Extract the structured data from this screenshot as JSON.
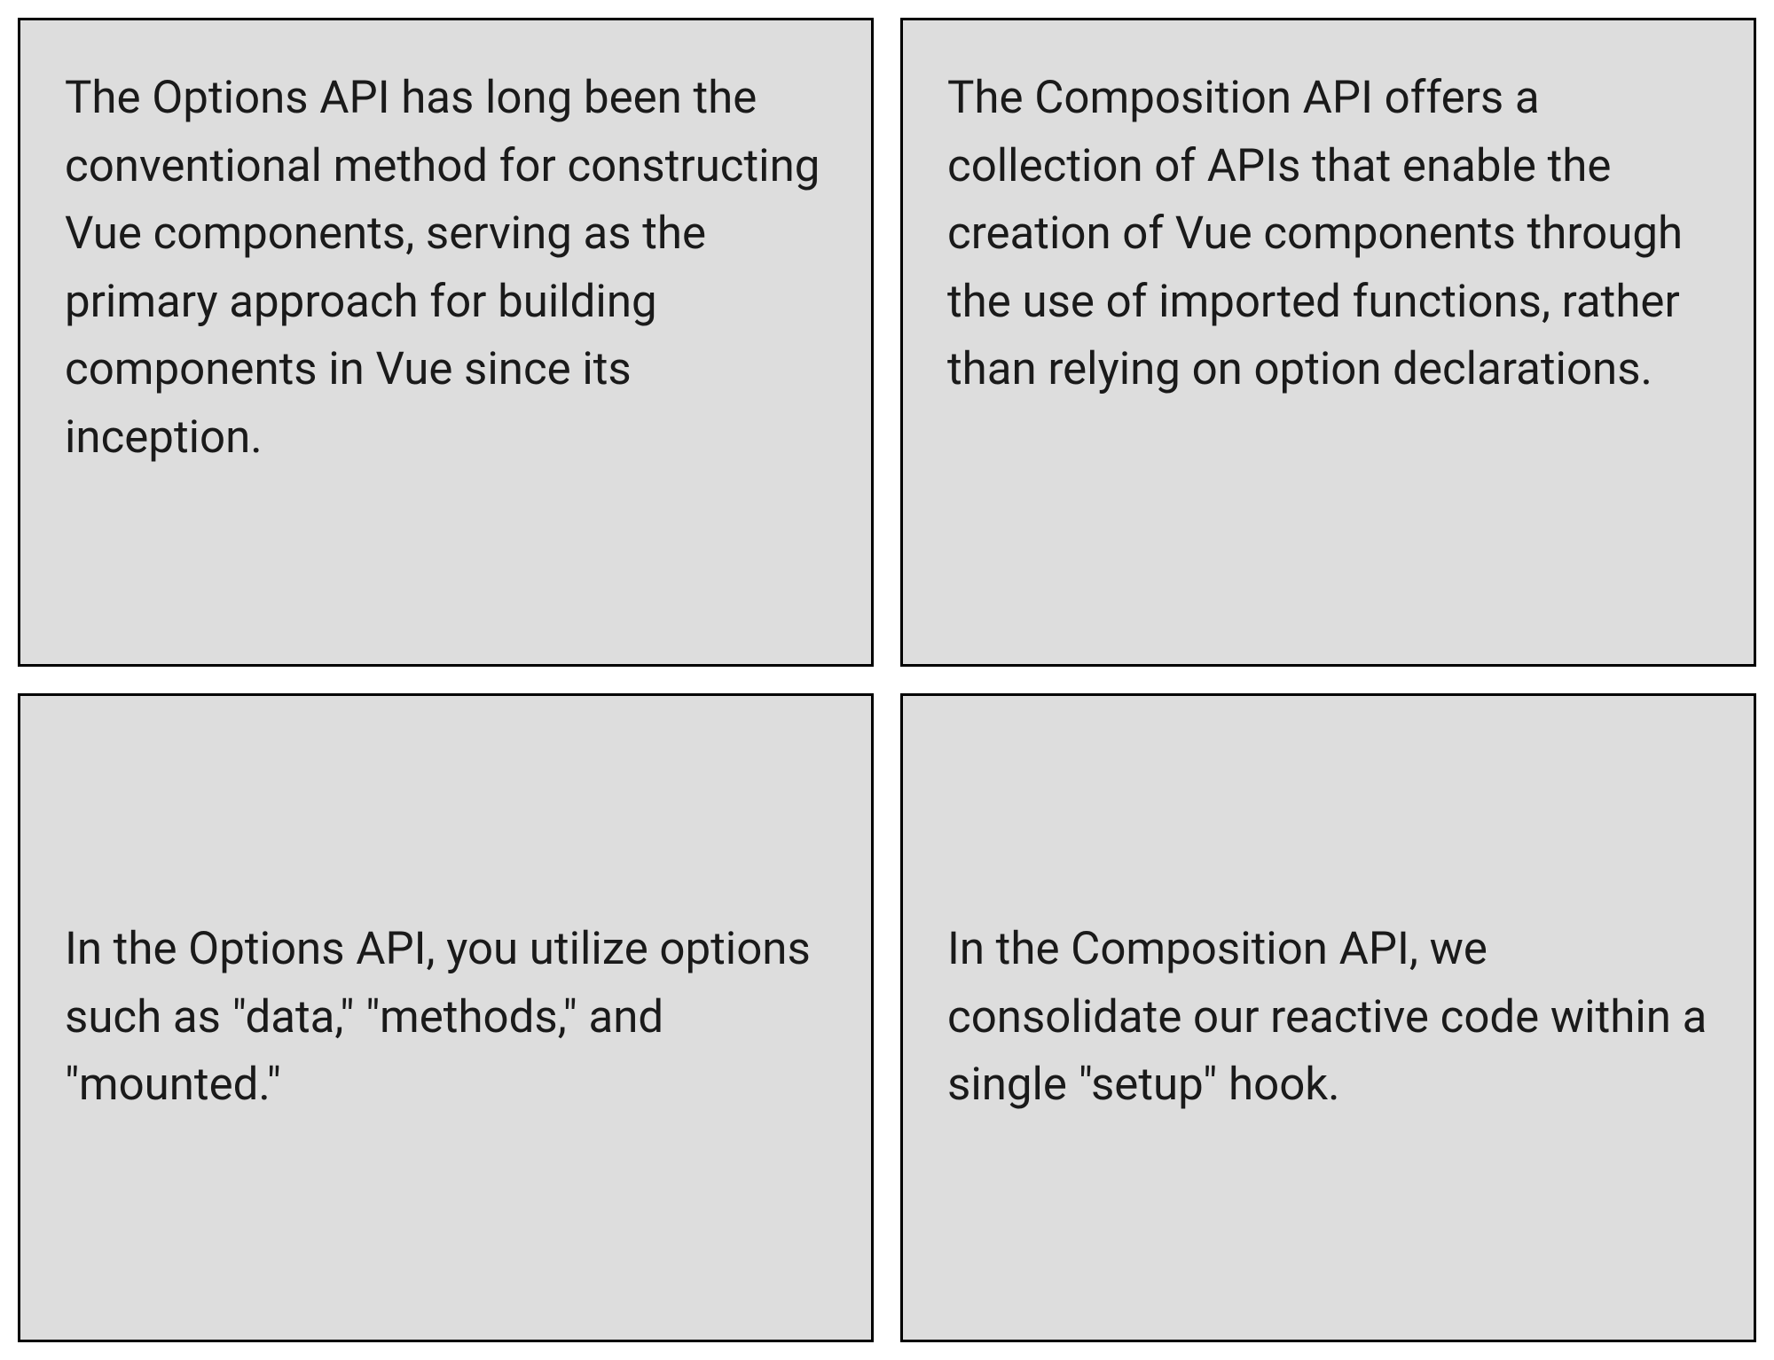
{
  "grid": {
    "cells": [
      {
        "text": "The Options API has long been the conventional method for constructing Vue components, serving as the primary approach for building components in Vue since its inception."
      },
      {
        "text": "The Composition API offers a collection of APIs that enable the creation of Vue components through the use of imported functions, rather than relying on option declarations."
      },
      {
        "text": "In the Options API, you utilize options such as \"data,\" \"methods,\" and \"mounted.\""
      },
      {
        "text": "In the Composition API, we consolidate our reactive code within a single \"setup\" hook."
      }
    ]
  },
  "style": {
    "background_color": "#ffffff",
    "cell_background_color": "#dddddd",
    "cell_border_color": "#000000",
    "cell_border_width": 3,
    "text_color": "#1a1a1a",
    "font_size": 51,
    "line_height": 1.5,
    "gap": 30,
    "cell_padding": 50
  }
}
